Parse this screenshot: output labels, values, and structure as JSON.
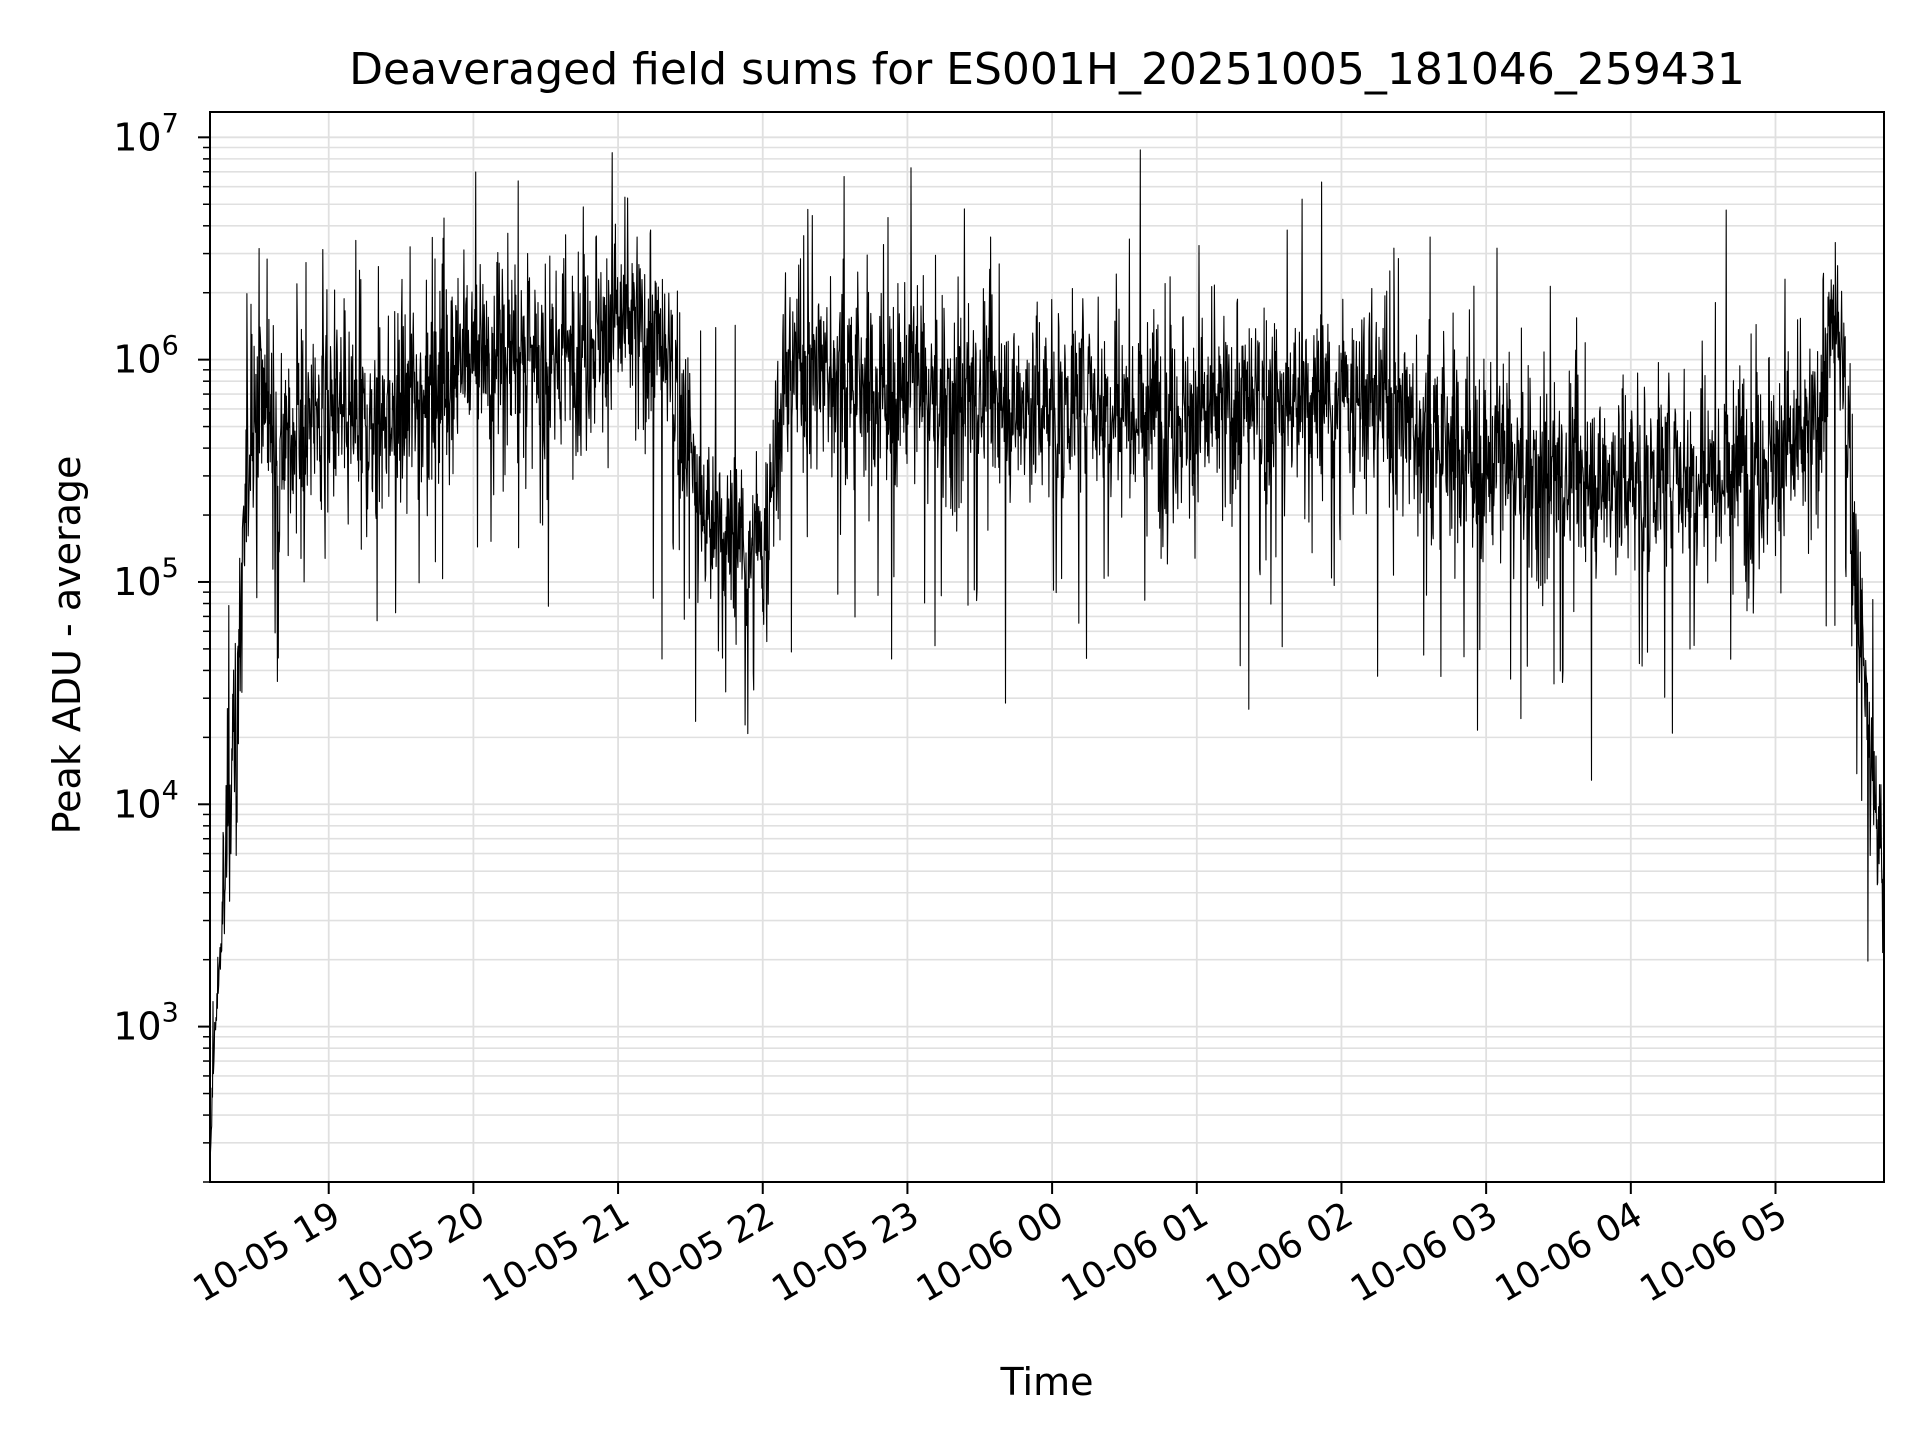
{
  "chart_data": {
    "type": "line",
    "title": "Deaveraged field sums for ES001H_20251005_181046_259431",
    "xlabel": "Time",
    "ylabel": "Peak ADU - average",
    "yscale": "log",
    "ylim": [
      200,
      13000000
    ],
    "xlim": [
      "2025-10-05 18:10:46",
      "2025-10-06 05:45:00"
    ],
    "grid": true,
    "line_color": "#000000",
    "grid_color": "#e0e0e0",
    "x_ticks": [
      {
        "value": "2025-10-05 19:00",
        "label": "10-05 19"
      },
      {
        "value": "2025-10-05 20:00",
        "label": "10-05 20"
      },
      {
        "value": "2025-10-05 21:00",
        "label": "10-05 21"
      },
      {
        "value": "2025-10-05 22:00",
        "label": "10-05 22"
      },
      {
        "value": "2025-10-05 23:00",
        "label": "10-05 23"
      },
      {
        "value": "2025-10-06 00:00",
        "label": "10-06 00"
      },
      {
        "value": "2025-10-06 01:00",
        "label": "10-06 01"
      },
      {
        "value": "2025-10-06 02:00",
        "label": "10-06 02"
      },
      {
        "value": "2025-10-06 03:00",
        "label": "10-06 03"
      },
      {
        "value": "2025-10-06 04:00",
        "label": "10-06 04"
      },
      {
        "value": "2025-10-06 05:00",
        "label": "10-06 05"
      }
    ],
    "y_ticks": [
      {
        "value": 1000,
        "base": "10",
        "exp": "3"
      },
      {
        "value": 10000,
        "base": "10",
        "exp": "4"
      },
      {
        "value": 100000,
        "base": "10",
        "exp": "5"
      },
      {
        "value": 1000000,
        "base": "10",
        "exp": "6"
      },
      {
        "value": 10000000,
        "base": "10",
        "exp": "7"
      }
    ],
    "series": [
      {
        "x": [
          "2025-10-05 18:10:46",
          "2025-10-05 18:12:00",
          "2025-10-05 18:14:00",
          "2025-10-05 18:16:00",
          "2025-10-05 18:18:00",
          "2025-10-05 18:20:00",
          "2025-10-05 18:22:00",
          "2025-10-05 18:24:00",
          "2025-10-05 18:27:00",
          "2025-10-05 18:30:00",
          "2025-10-05 18:35:00",
          "2025-10-05 18:40:00",
          "2025-10-05 18:50:00",
          "2025-10-05 19:00:00",
          "2025-10-05 19:15:00",
          "2025-10-05 19:30:00",
          "2025-10-05 19:45:00",
          "2025-10-05 20:00:00",
          "2025-10-05 20:15:00",
          "2025-10-05 20:30:00",
          "2025-10-05 20:45:00",
          "2025-10-05 21:00:00",
          "2025-10-05 21:15:00",
          "2025-10-05 21:25:00",
          "2025-10-05 21:35:00",
          "2025-10-05 21:45:00",
          "2025-10-05 22:00:00",
          "2025-10-05 22:10:00",
          "2025-10-05 22:20:00",
          "2025-10-05 22:30:00",
          "2025-10-05 22:45:00",
          "2025-10-05 23:00:00",
          "2025-10-05 23:15:00",
          "2025-10-05 23:30:00",
          "2025-10-05 23:45:00",
          "2025-10-06 00:00:00",
          "2025-10-06 00:15:00",
          "2025-10-06 00:30:00",
          "2025-10-06 00:45:00",
          "2025-10-06 01:00:00",
          "2025-10-06 01:15:00",
          "2025-10-06 01:30:00",
          "2025-10-06 01:45:00",
          "2025-10-06 02:00:00",
          "2025-10-06 02:15:00",
          "2025-10-06 02:30:00",
          "2025-10-06 02:45:00",
          "2025-10-06 03:00:00",
          "2025-10-06 03:15:00",
          "2025-10-06 03:30:00",
          "2025-10-06 03:45:00",
          "2025-10-06 04:00:00",
          "2025-10-06 04:15:00",
          "2025-10-06 04:30:00",
          "2025-10-06 04:45:00",
          "2025-10-06 05:00:00",
          "2025-10-06 05:15:00",
          "2025-10-06 05:25:00",
          "2025-10-06 05:30:00",
          "2025-10-06 05:35:00",
          "2025-10-06 05:40:00",
          "2025-10-06 05:45:00"
        ],
        "y": [
          200,
          600,
          1500,
          3000,
          8000,
          15000,
          30000,
          100000,
          400000,
          800000,
          600000,
          400000,
          500000,
          600000,
          500000,
          600000,
          900000,
          1000000,
          1100000,
          900000,
          1200000,
          1500000,
          1200000,
          700000,
          200000,
          150000,
          120000,
          900000,
          900000,
          900000,
          700000,
          800000,
          650000,
          700000,
          600000,
          650000,
          700000,
          650000,
          600000,
          550000,
          600000,
          600000,
          650000,
          600000,
          700000,
          500000,
          400000,
          350000,
          320000,
          300000,
          280000,
          300000,
          320000,
          330000,
          340000,
          380000,
          420000,
          1500000,
          500000,
          60000,
          15000,
          4000
        ]
      }
    ]
  }
}
